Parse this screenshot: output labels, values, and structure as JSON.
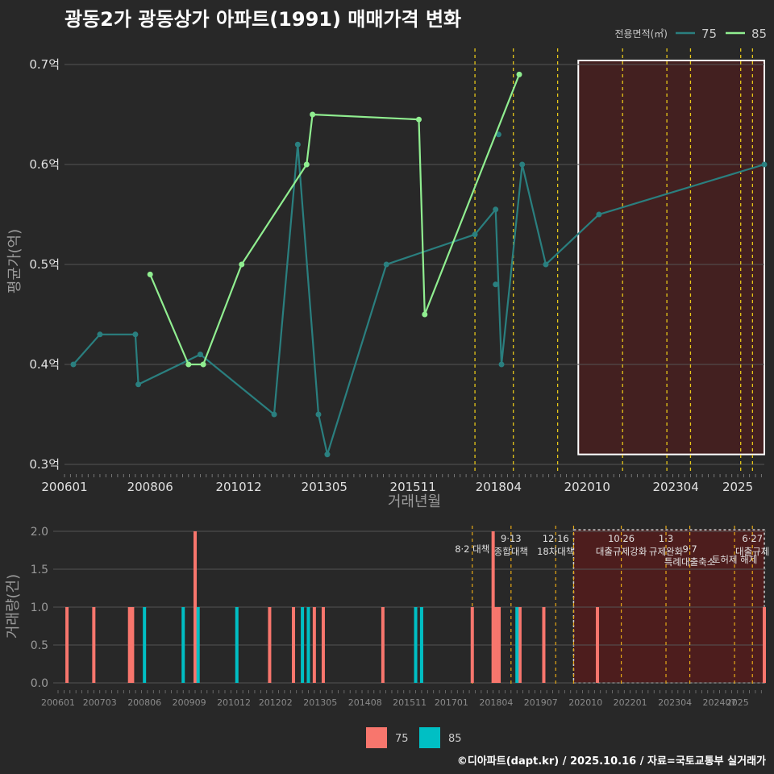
{
  "title": "광동2가 광동상가 아파트(1991) 매매가격 변화",
  "footer": "©디아파트(dapt.kr) / 2025.10.16 / 자료=국토교통부 실거래가",
  "colors": {
    "background": "#282828",
    "grid": "#555555",
    "series_75_line": "#2a7f7f",
    "series_85_line": "#90ee90",
    "bar_75": "#f8766d",
    "bar_85": "#00bfc4",
    "policy_line": "#e6c619",
    "highlight_fill": "#5a1a1a",
    "highlight_border": "#ffffff"
  },
  "chart_data": [
    {
      "type": "line",
      "name": "price-chart",
      "xlabel": "거래년월",
      "ylabel": "평균가(억)",
      "ylim": [
        0.3,
        0.7
      ],
      "xlim": [
        "2006-01",
        "2025-10"
      ],
      "y_ticks": [
        {
          "value": 0.3,
          "label": "0.3억"
        },
        {
          "value": 0.4,
          "label": "0.4억"
        },
        {
          "value": 0.5,
          "label": "0.5억"
        },
        {
          "value": 0.6,
          "label": "0.6억"
        },
        {
          "value": 0.7,
          "label": "0.7억"
        }
      ],
      "x_ticks": [
        "200601",
        "200806",
        "201012",
        "201305",
        "201511",
        "201804",
        "202010",
        "202304",
        "2025"
      ],
      "legend": {
        "title": "전용면적(㎡)",
        "position": "top-right"
      },
      "series": [
        {
          "name": "75",
          "points": [
            {
              "x": "2006-04",
              "y": 0.4
            },
            {
              "x": "2007-01",
              "y": 0.43
            },
            {
              "x": "2008-01",
              "y": 0.43
            },
            {
              "x": "2008-02",
              "y": 0.38
            },
            {
              "x": "2009-11",
              "y": 0.41
            },
            {
              "x": "2011-12",
              "y": 0.35
            },
            {
              "x": "2012-08",
              "y": 0.62
            },
            {
              "x": "2013-03",
              "y": 0.35
            },
            {
              "x": "2013-06",
              "y": 0.31
            },
            {
              "x": "2015-02",
              "y": 0.5
            },
            {
              "x": "2017-08",
              "y": 0.53
            },
            {
              "x": "2018-03",
              "y": 0.555
            },
            {
              "x": "2018-05",
              "y": 0.4
            },
            {
              "x": "2018-12",
              "y": 0.6
            },
            {
              "x": "2019-08",
              "y": 0.5
            },
            {
              "x": "2021-02",
              "y": 0.55
            },
            {
              "x": "2025-10",
              "y": 0.6
            }
          ],
          "isolated_points": [
            {
              "x": "2018-03",
              "y": 0.48
            },
            {
              "x": "2018-04",
              "y": 0.63
            }
          ]
        },
        {
          "name": "85",
          "points": [
            {
              "x": "2008-06",
              "y": 0.49
            },
            {
              "x": "2009-07",
              "y": 0.4
            },
            {
              "x": "2009-12",
              "y": 0.4
            },
            {
              "x": "2011-01",
              "y": 0.5
            },
            {
              "x": "2012-11",
              "y": 0.6
            },
            {
              "x": "2013-01",
              "y": 0.65
            },
            {
              "x": "2016-01",
              "y": 0.645
            },
            {
              "x": "2016-03",
              "y": 0.45
            },
            {
              "x": "2018-11",
              "y": 0.69
            }
          ]
        }
      ],
      "policy_lines": [
        "2017-08",
        "2018-09",
        "2019-12",
        "2021-10",
        "2023-01",
        "2023-09",
        "2025-02",
        "2025-06"
      ],
      "highlight_range": [
        "2020-07",
        "2025-10"
      ]
    },
    {
      "type": "bar",
      "name": "volume-chart",
      "xlabel": "",
      "ylabel": "거래량(건)",
      "ylim": [
        0,
        2
      ],
      "y_ticks": [
        {
          "value": 0,
          "label": "0.0"
        },
        {
          "value": 0.5,
          "label": "0.5"
        },
        {
          "value": 1,
          "label": "1.0"
        },
        {
          "value": 1.5,
          "label": "1.5"
        },
        {
          "value": 2,
          "label": "2.0"
        }
      ],
      "x_ticks": [
        "200601",
        "200703",
        "200806",
        "200909",
        "201012",
        "201202",
        "201305",
        "201408",
        "201511",
        "201701",
        "201804",
        "201907",
        "202010",
        "202201",
        "202304",
        "202407",
        "2025"
      ],
      "legend": {
        "position": "bottom",
        "items": [
          "75",
          "85"
        ]
      },
      "series": [
        {
          "name": "75",
          "bars": [
            {
              "x": "2006-04",
              "v": 1
            },
            {
              "x": "2007-01",
              "v": 1
            },
            {
              "x": "2008-01",
              "v": 1
            },
            {
              "x": "2008-02",
              "v": 1
            },
            {
              "x": "2009-11",
              "v": 2
            },
            {
              "x": "2011-12",
              "v": 1
            },
            {
              "x": "2012-08",
              "v": 1
            },
            {
              "x": "2013-03",
              "v": 1
            },
            {
              "x": "2013-06",
              "v": 1
            },
            {
              "x": "2015-02",
              "v": 1
            },
            {
              "x": "2017-08",
              "v": 1
            },
            {
              "x": "2018-03",
              "v": 2
            },
            {
              "x": "2018-04",
              "v": 1
            },
            {
              "x": "2018-05",
              "v": 1
            },
            {
              "x": "2018-12",
              "v": 1
            },
            {
              "x": "2019-08",
              "v": 1
            },
            {
              "x": "2021-02",
              "v": 1
            },
            {
              "x": "2025-10",
              "v": 1
            }
          ]
        },
        {
          "name": "85",
          "bars": [
            {
              "x": "2008-06",
              "v": 1
            },
            {
              "x": "2009-07",
              "v": 1
            },
            {
              "x": "2009-12",
              "v": 1
            },
            {
              "x": "2011-01",
              "v": 1
            },
            {
              "x": "2012-11",
              "v": 1
            },
            {
              "x": "2013-01",
              "v": 1
            },
            {
              "x": "2016-01",
              "v": 1
            },
            {
              "x": "2016-03",
              "v": 1
            },
            {
              "x": "2018-11",
              "v": 1
            }
          ]
        }
      ],
      "policy_events": [
        {
          "x": "2017-08",
          "label": "8·2 대책",
          "row": 2
        },
        {
          "x": "2018-09",
          "label": "9·13\n종합대책",
          "row": 1
        },
        {
          "x": "2019-12",
          "label": "12·16\n18차대책",
          "row": 1
        },
        {
          "x": "2020-06",
          "label": "",
          "row": 0
        },
        {
          "x": "2021-10",
          "label": "10·26\n대출규제강화",
          "row": 1
        },
        {
          "x": "2023-01",
          "label": "1·3\n규제완화",
          "row": 1
        },
        {
          "x": "2023-09",
          "label": "9·7\n특례대출축소",
          "row": 2
        },
        {
          "x": "2024-12",
          "label": "토허제 해제",
          "row": 3
        },
        {
          "x": "2025-06",
          "label": "6·27\n대출규제",
          "row": 1
        }
      ],
      "highlight_range": [
        "2020-06",
        "2025-10"
      ]
    }
  ]
}
